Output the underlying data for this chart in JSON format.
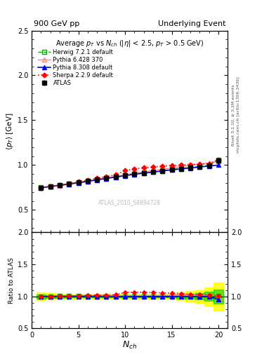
{
  "title_left": "900 GeV pp",
  "title_right": "Underlying Event",
  "plot_title": "Average $p_T$ vs $N_{ch}$ ($|\\eta|$ < 2.5, $p_T$ > 0.5 GeV)",
  "ylabel_main": "$\\langle p_T \\rangle$ [GeV]",
  "ylabel_ratio": "Ratio to ATLAS",
  "xlabel": "$N_{ch}$",
  "ylim_main": [
    0.25,
    2.5
  ],
  "ylim_ratio": [
    0.5,
    2.0
  ],
  "watermark": "ATLAS_2010_S8894728",
  "right_label1": "Rivet 3.1.10, ≥ 3.2M events",
  "right_label2": "mcplots.cern.ch [arXiv:1306.3436]",
  "nch": [
    1,
    2,
    3,
    4,
    5,
    6,
    7,
    8,
    9,
    10,
    11,
    12,
    13,
    14,
    15,
    16,
    17,
    18,
    19,
    20
  ],
  "atlas_y": [
    0.748,
    0.762,
    0.775,
    0.79,
    0.805,
    0.82,
    0.838,
    0.855,
    0.87,
    0.885,
    0.9,
    0.912,
    0.924,
    0.936,
    0.95,
    0.96,
    0.972,
    0.982,
    0.992,
    1.05
  ],
  "atlas_yerr": [
    0.015,
    0.01,
    0.008,
    0.007,
    0.006,
    0.006,
    0.005,
    0.005,
    0.005,
    0.005,
    0.005,
    0.005,
    0.005,
    0.005,
    0.005,
    0.008,
    0.01,
    0.012,
    0.015,
    0.025
  ],
  "herwig_y": [
    0.75,
    0.763,
    0.778,
    0.793,
    0.808,
    0.822,
    0.84,
    0.856,
    0.871,
    0.887,
    0.902,
    0.914,
    0.926,
    0.939,
    0.953,
    0.964,
    0.975,
    0.985,
    0.998,
    1.055
  ],
  "pythia6_y": [
    0.75,
    0.76,
    0.772,
    0.787,
    0.804,
    0.82,
    0.84,
    0.858,
    0.875,
    0.893,
    0.91,
    0.924,
    0.937,
    0.952,
    0.968,
    0.982,
    0.998,
    1.01,
    1.025,
    1.045
  ],
  "pythia8_y": [
    0.748,
    0.761,
    0.774,
    0.788,
    0.803,
    0.818,
    0.835,
    0.851,
    0.866,
    0.882,
    0.897,
    0.91,
    0.922,
    0.934,
    0.947,
    0.957,
    0.968,
    0.978,
    0.99,
    1.0
  ],
  "sherpa_y": [
    0.748,
    0.762,
    0.778,
    0.795,
    0.812,
    0.832,
    0.852,
    0.872,
    0.892,
    0.938,
    0.958,
    0.97,
    0.978,
    0.988,
    0.995,
    1.0,
    1.005,
    1.01,
    1.015,
    1.06
  ],
  "colors": {
    "atlas": "#000000",
    "herwig": "#00aa00",
    "pythia6": "#ff8080",
    "pythia8": "#0000ff",
    "sherpa": "#ff0000"
  },
  "herwig_ratio_y": [
    1.003,
    1.001,
    1.004,
    1.004,
    1.004,
    1.002,
    1.002,
    1.001,
    1.001,
    1.002,
    1.002,
    1.002,
    1.002,
    1.003,
    1.003,
    1.004,
    1.003,
    1.003,
    1.006,
    1.005
  ],
  "pythia6_ratio_y": [
    1.003,
    0.997,
    0.997,
    0.997,
    0.999,
    1.0,
    1.002,
    1.003,
    1.006,
    1.009,
    1.011,
    1.013,
    1.014,
    1.017,
    1.019,
    1.023,
    1.027,
    1.029,
    1.033,
    0.995
  ],
  "pythia8_ratio_y": [
    1.0,
    0.999,
    0.999,
    0.998,
    0.998,
    0.998,
    0.997,
    0.996,
    0.996,
    0.997,
    0.997,
    0.998,
    0.998,
    0.998,
    0.997,
    0.997,
    0.996,
    0.996,
    0.998,
    0.952
  ],
  "sherpa_ratio_y": [
    1.0,
    1.0,
    1.004,
    1.008,
    1.012,
    1.018,
    1.02,
    1.023,
    1.026,
    1.062,
    1.065,
    1.065,
    1.059,
    1.057,
    1.05,
    1.043,
    1.035,
    1.029,
    1.024,
    1.01
  ],
  "yellow_err": [
    0.06,
    0.05,
    0.04,
    0.035,
    0.03,
    0.03,
    0.03,
    0.03,
    0.03,
    0.03,
    0.03,
    0.03,
    0.03,
    0.03,
    0.03,
    0.06,
    0.08,
    0.1,
    0.14,
    0.22
  ],
  "green_err": [
    0.03,
    0.025,
    0.02,
    0.018,
    0.015,
    0.015,
    0.015,
    0.015,
    0.015,
    0.015,
    0.015,
    0.015,
    0.015,
    0.015,
    0.015,
    0.03,
    0.04,
    0.05,
    0.07,
    0.11
  ]
}
